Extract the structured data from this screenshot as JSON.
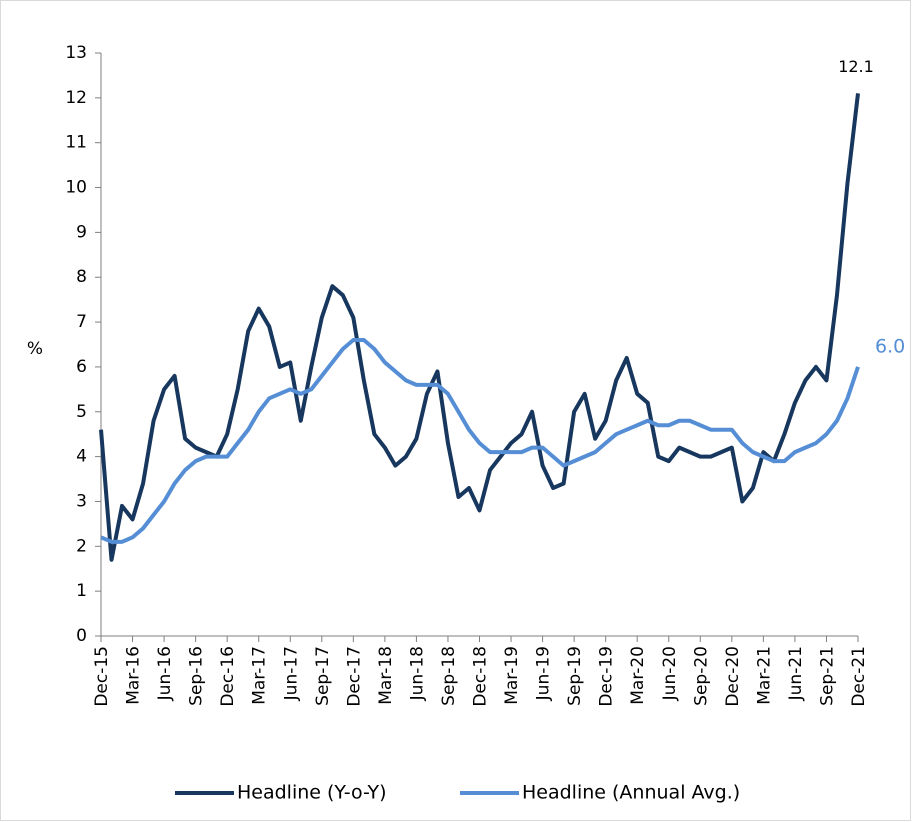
{
  "chart_data": {
    "type": "line",
    "y_label": "%",
    "categories": [
      "Dec-15",
      null,
      null,
      "Mar-16",
      null,
      null,
      "Jun-16",
      null,
      null,
      "Sep-16",
      null,
      null,
      "Dec-16",
      null,
      null,
      "Mar-17",
      null,
      null,
      "Jun-17",
      null,
      null,
      "Sep-17",
      null,
      null,
      "Dec-17",
      null,
      null,
      "Mar-18",
      null,
      null,
      "Jun-18",
      null,
      null,
      "Sep-18",
      null,
      null,
      "Dec-18",
      null,
      null,
      "Mar-19",
      null,
      null,
      "Jun-19",
      null,
      null,
      "Sep-19",
      null,
      null,
      "Dec-19",
      null,
      null,
      "Mar-20",
      null,
      null,
      "Jun-20",
      null,
      null,
      "Sep-20",
      null,
      null,
      "Dec-20",
      null,
      null,
      "Mar-21",
      null,
      null,
      "Jun-21",
      null,
      null,
      "Sep-21",
      null,
      null,
      "Dec-21"
    ],
    "series": [
      {
        "name": "Headline (Y-o-Y)",
        "color": "#17375e",
        "values": [
          4.6,
          1.7,
          2.9,
          2.6,
          3.4,
          4.8,
          5.5,
          5.8,
          4.4,
          4.2,
          4.1,
          4.0,
          4.5,
          5.5,
          6.8,
          7.3,
          6.9,
          6.0,
          6.1,
          4.8,
          6.0,
          7.1,
          7.8,
          7.6,
          7.1,
          5.7,
          4.5,
          4.2,
          3.8,
          4.0,
          4.4,
          5.4,
          5.9,
          4.3,
          3.1,
          3.3,
          2.8,
          3.7,
          4.0,
          4.3,
          4.5,
          5.0,
          3.8,
          3.3,
          3.4,
          5.0,
          5.4,
          4.4,
          4.8,
          5.7,
          6.2,
          5.4,
          5.2,
          4.0,
          3.9,
          4.2,
          4.1,
          4.0,
          4.0,
          4.1,
          4.2,
          3.0,
          3.3,
          4.1,
          3.9,
          4.5,
          5.2,
          5.7,
          6.0,
          5.7,
          7.6,
          10.1,
          12.1
        ],
        "value_labels": [
          null,
          null,
          null,
          null,
          null,
          null,
          null,
          null,
          null,
          null,
          null,
          null,
          null,
          null,
          null,
          null,
          null,
          null,
          null,
          null,
          null,
          null,
          null,
          null,
          null,
          null,
          null,
          null,
          null,
          null,
          null,
          null,
          null,
          null,
          null,
          null,
          null,
          null,
          null,
          null,
          null,
          null,
          null,
          null,
          null,
          null,
          null,
          null,
          null,
          null,
          null,
          null,
          null,
          null,
          null,
          null,
          null,
          null,
          null,
          null,
          null,
          null,
          null,
          null,
          null,
          null,
          null,
          null,
          null,
          null,
          null,
          null,
          "12.1"
        ]
      },
      {
        "name": "Headline (Annual Avg.)",
        "color": "#558ed5",
        "values": [
          2.2,
          2.1,
          2.1,
          2.2,
          2.4,
          2.7,
          3.0,
          3.4,
          3.7,
          3.9,
          4.0,
          4.0,
          4.0,
          4.3,
          4.6,
          5.0,
          5.3,
          5.4,
          5.5,
          5.4,
          5.5,
          5.8,
          6.1,
          6.4,
          6.6,
          6.6,
          6.4,
          6.1,
          5.9,
          5.7,
          5.6,
          5.6,
          5.6,
          5.4,
          5.0,
          4.6,
          4.3,
          4.1,
          4.1,
          4.1,
          4.1,
          4.2,
          4.2,
          4.0,
          3.8,
          3.9,
          4.0,
          4.1,
          4.3,
          4.5,
          4.6,
          4.7,
          4.8,
          4.7,
          4.7,
          4.8,
          4.8,
          4.7,
          4.6,
          4.6,
          4.6,
          4.3,
          4.1,
          4.0,
          3.9,
          3.9,
          4.1,
          4.2,
          4.3,
          4.5,
          4.8,
          5.3,
          6.0
        ],
        "value_labels": [
          null,
          null,
          null,
          null,
          null,
          null,
          null,
          null,
          null,
          null,
          null,
          null,
          null,
          null,
          null,
          null,
          null,
          null,
          null,
          null,
          null,
          null,
          null,
          null,
          null,
          null,
          null,
          null,
          null,
          null,
          null,
          null,
          null,
          null,
          null,
          null,
          null,
          null,
          null,
          null,
          null,
          null,
          null,
          null,
          null,
          null,
          null,
          null,
          null,
          null,
          null,
          null,
          null,
          null,
          null,
          null,
          null,
          null,
          null,
          null,
          null,
          null,
          null,
          null,
          null,
          null,
          null,
          null,
          null,
          null,
          null,
          null,
          "6.0"
        ]
      }
    ],
    "ylim": [
      0,
      13
    ],
    "yticks": [
      0,
      1,
      2,
      3,
      4,
      5,
      6,
      7,
      8,
      9,
      10,
      11,
      12,
      13
    ],
    "grid": false,
    "legend": "bottom"
  }
}
